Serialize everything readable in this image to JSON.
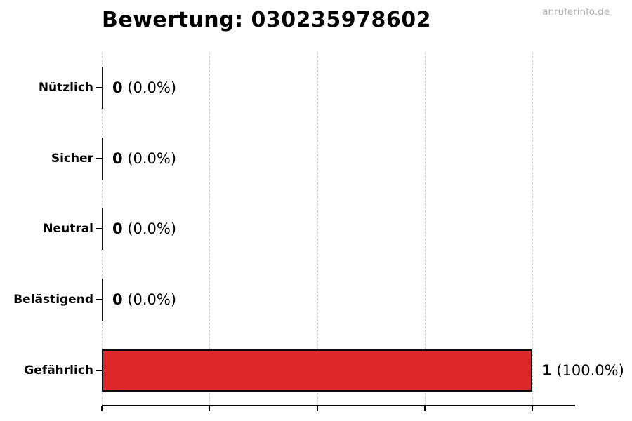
{
  "page": {
    "watermark": "anruferinfo.de"
  },
  "chart_data": {
    "type": "bar",
    "orientation": "horizontal",
    "title": "Bewertung: 030235978602",
    "categories": [
      "Nützlich",
      "Sicher",
      "Neutral",
      "Belästigend",
      "Gefährlich"
    ],
    "values": [
      0,
      0,
      0,
      0,
      1
    ],
    "counts": [
      "0",
      "0",
      "0",
      "0",
      "1"
    ],
    "percents": [
      "(0.0%)",
      "(0.0%)",
      "(0.0%)",
      "(0.0%)",
      "(100.0%)"
    ],
    "value_labels": [
      "0 (0.0%)",
      "0 (0.0%)",
      "0 (0.0%)",
      "0 (0.0%)",
      "1 (100.0%)"
    ],
    "xlabel": "",
    "ylabel": "",
    "xlim": [
      0,
      1.1
    ],
    "x_ticks": [
      0,
      0.25,
      0.5,
      0.75,
      1
    ],
    "x_tick_labels": [
      "",
      "",
      "",
      "",
      ""
    ],
    "grid": {
      "axis": "x",
      "style": "dashed",
      "color": "#cfcfcf"
    },
    "legend": "none",
    "title_align": "left",
    "colors": {
      "bar_fill": "#dc2828",
      "bar_edge": "#0d0d0d",
      "zero_bar": "#111111",
      "axis": "#000000",
      "text": "#000000",
      "watermark": "#b0b0b0"
    }
  }
}
